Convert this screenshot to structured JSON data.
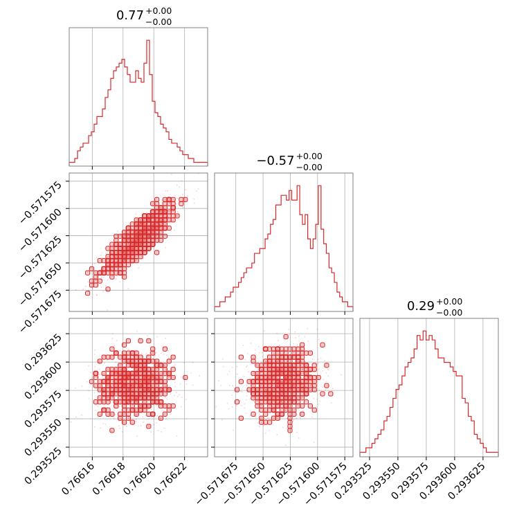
{
  "chart_data": {
    "type": "corner",
    "color": "#d62728",
    "grid": true,
    "params": [
      {
        "title": {
          "main": "0.77",
          "upper": "+0.00",
          "lower": "−0.00"
        },
        "range": [
          0.766145,
          0.766235
        ],
        "ticks": [
          0.76616,
          0.76618,
          0.7662,
          0.76622
        ],
        "tick_labels": [
          "0.76616",
          "0.76618",
          "0.76620",
          "0.76622"
        ],
        "hist": [
          1,
          1,
          2,
          4,
          5,
          6,
          6,
          8,
          9,
          11,
          13,
          13,
          15,
          18,
          20,
          23,
          25,
          26,
          27,
          28,
          26,
          24,
          22,
          22,
          25,
          23,
          22,
          27,
          33,
          24,
          17,
          14,
          13,
          11,
          10,
          9,
          7,
          6,
          6,
          5,
          4,
          3,
          3,
          2,
          2,
          1,
          1,
          1,
          1,
          1
        ],
        "hist_max": 33
      },
      {
        "title": {
          "main": "−0.57",
          "upper": "+0.00",
          "lower": "−0.00"
        },
        "range": [
          -0.5716945,
          -0.5715675
        ],
        "ticks": [
          -0.571675,
          -0.57165,
          -0.571625,
          -0.5716,
          -0.571575
        ],
        "tick_labels": [
          "−0.571675",
          "−0.571650",
          "−0.571625",
          "−0.571600",
          "−0.571575"
        ],
        "hist": [
          1,
          1,
          2,
          2,
          3,
          3,
          4,
          5,
          5,
          6,
          7,
          8,
          9,
          9,
          10,
          12,
          12,
          13,
          13,
          15,
          16,
          18,
          19,
          22,
          22,
          24,
          24,
          23,
          25,
          23,
          23,
          26,
          20,
          18,
          20,
          15,
          13,
          15,
          18,
          26,
          17,
          14,
          12,
          9,
          8,
          6,
          4,
          3,
          2,
          2,
          1,
          1
        ],
        "hist_max": 26
      },
      {
        "title": {
          "main": "0.29",
          "upper": "+0.00",
          "lower": "−0.00"
        },
        "range": [
          0.2935165,
          0.2936385
        ],
        "ticks": [
          0.293525,
          0.29355,
          0.293575,
          0.2936,
          0.293625
        ],
        "tick_labels": [
          "0.293525",
          "0.293550",
          "0.293575",
          "0.293600",
          "0.293625"
        ],
        "hist": [
          1,
          1,
          2,
          2,
          3,
          4,
          5,
          6,
          8,
          9,
          11,
          13,
          15,
          16,
          18,
          20,
          21,
          22,
          24,
          27,
          26,
          28,
          26,
          27,
          26,
          24,
          22,
          22,
          21,
          21,
          20,
          19,
          18,
          18,
          13,
          12,
          9,
          8,
          5,
          4,
          3,
          2,
          1,
          1,
          1,
          1
        ],
        "hist_max": 28
      }
    ],
    "pairs": [
      {
        "x": 0,
        "y": 1,
        "mean": [
          0.76619,
          -0.571628
        ],
        "sd": [
          1.3e-05,
          1.85e-05
        ],
        "rho": 0.85
      },
      {
        "x": 0,
        "y": 2,
        "mean": [
          0.766188,
          0.293581
        ],
        "sd": [
          1.3e-05,
          1.6e-05
        ],
        "rho": 0.0
      },
      {
        "x": 1,
        "y": 2,
        "mean": [
          -0.571633,
          0.293581
        ],
        "sd": [
          1.8e-05,
          1.6e-05
        ],
        "rho": 0.1
      }
    ]
  }
}
